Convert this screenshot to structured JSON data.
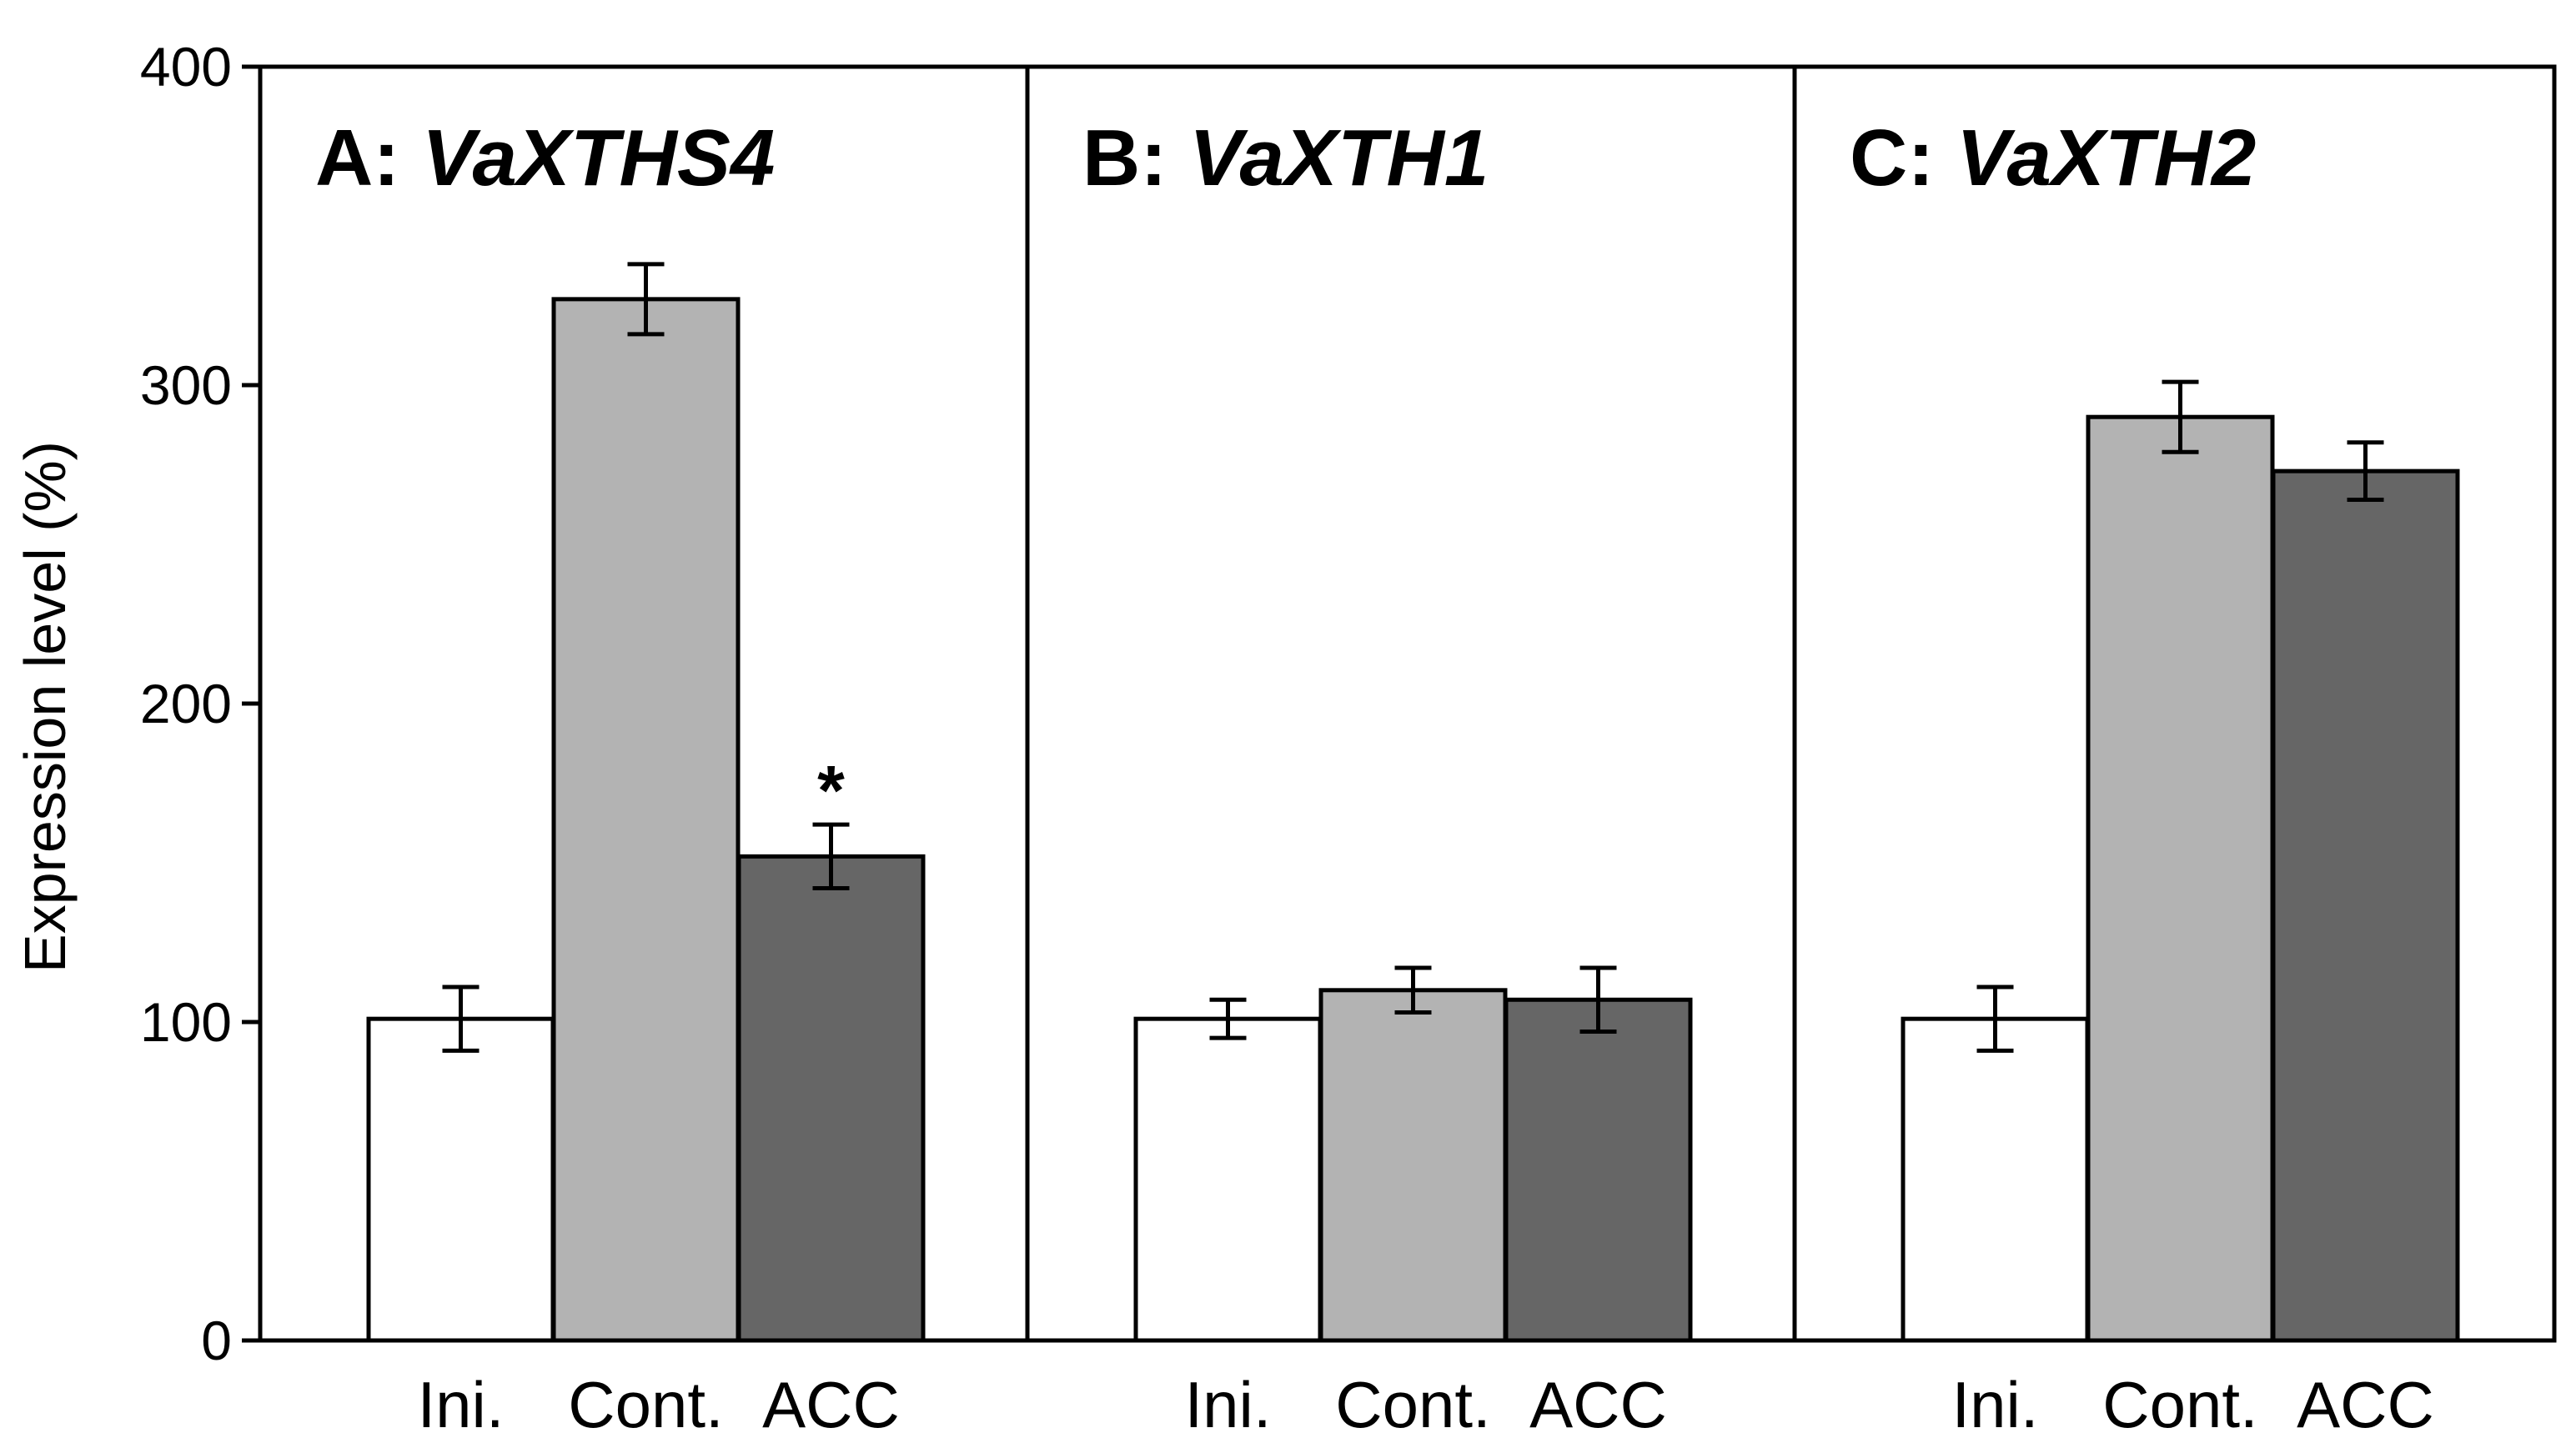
{
  "chart_data": {
    "type": "bar",
    "ylabel": "Expression level (%)",
    "ylim": [
      0,
      400
    ],
    "yticks": [
      0,
      100,
      200,
      300,
      400
    ],
    "categories": [
      "Ini.",
      "Cont.",
      "ACC"
    ],
    "colors": [
      "#ffffff",
      "#b3b3b3",
      "#666666"
    ],
    "panels": [
      {
        "letter": "A: ",
        "gene": "VaXTHS4",
        "values": [
          101,
          327,
          152
        ],
        "errors": [
          10,
          11,
          10
        ],
        "significance": [
          "",
          "",
          "*"
        ]
      },
      {
        "letter": "B: ",
        "gene": "VaXTH1",
        "values": [
          101,
          110,
          107
        ],
        "errors": [
          6,
          7,
          10
        ],
        "significance": [
          "",
          "",
          ""
        ]
      },
      {
        "letter": "C: ",
        "gene": "VaXTH2",
        "values": [
          101,
          290,
          273
        ],
        "errors": [
          10,
          11,
          9
        ],
        "significance": [
          "",
          "",
          ""
        ]
      }
    ]
  }
}
